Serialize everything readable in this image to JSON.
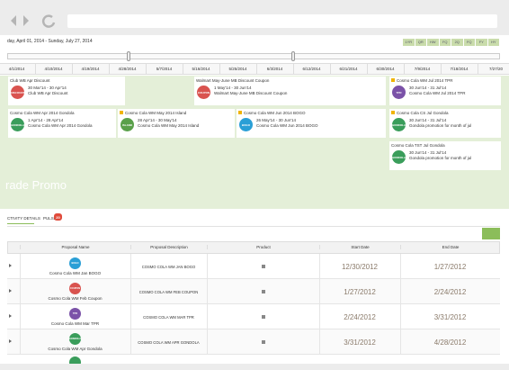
{
  "timeline": {
    "range": "day, April 01, 2014 - Sunday, July 27, 2014",
    "views": [
      "1YR",
      "QR",
      "HW",
      "FQ",
      "2Q",
      "FQ",
      "FY",
      "HY"
    ],
    "dates": [
      "4/1/2014",
      "4/10/2014",
      "4/19/2014",
      "4/28/2014",
      "5/7/2014",
      "5/16/2014",
      "5/25/2014",
      "6/3/2014",
      "6/12/2014",
      "6/21/2014",
      "6/30/2014",
      "7/9/2014",
      "7/18/2014",
      "7/27/20"
    ]
  },
  "events": [
    {
      "title": "Club WB Apr Discount",
      "dates": "30 Mar'14 - 30 Apr'14",
      "description": "Club WB Apr Discount",
      "badge": "DISCOUNT"
    },
    {
      "title": "Walmart May-June MB Discount Coupon",
      "dates": "1 May'14 - 30 Jun'14",
      "description": "Walmart May-June MB Discount Coupon",
      "badge": "COUPON"
    },
    {
      "title": "Cosmo Cola WM Jul 2014 TPR",
      "dates": "30 Jun'14 - 31 Jul'14",
      "description": "Cosmo Cola WM Jul 2014 TPR",
      "badge": "TPR"
    },
    {
      "title": "Cosmo Cola WM Apr 2014 Gondola",
      "dates": "1 Apr'14 - 28 Apr'14",
      "description": "Cosmo Cola WM Apr 2014 Gondola",
      "badge": "GONDOLA"
    },
    {
      "title": "Cosmo Cola WM May 2014 Island",
      "dates": "28 Apr'14 - 30 May'14",
      "description": "Cosmo Cola WM May 2014 Island",
      "badge": "ISLAND"
    },
    {
      "title": "Cosmo Cola WM Jun 2014 BOGO",
      "dates": "26 May'14 - 30 Jun'14",
      "description": "Cosmo Cola WM Jun 2014 BOGO",
      "badge": "BOGO"
    },
    {
      "title": "Cosmo Cola CS Jul Gondola",
      "dates": "30 Jun'14 - 31 Jul'14",
      "description": "Gondola promotion for month of jul",
      "badge": "GONDOLA"
    },
    {
      "title": "Cosmo Cola TST Jul Gondola",
      "dates": "30 Jun'14 - 31 Jul'14",
      "description": "Gondola promotion for month of jul",
      "badge": "GONDOLA"
    }
  ],
  "section_title": "rade Promo",
  "tabs": {
    "details": "CTIVITY DETAILS",
    "pulse": "PULSE",
    "pulse_count": "20"
  },
  "table": {
    "headers": [
      "Proposal Name",
      "Proposal Description",
      "Product",
      "Start Date",
      "End Date"
    ],
    "rows": [
      {
        "name": "Cosmo Cola WM Jan BOGO",
        "badge": "BOGO",
        "description": "COSMO COLA WM JAN BOGO",
        "start": "12/30/2012",
        "end": "1/27/2012"
      },
      {
        "name": "Cosmo Cola WM Feb Coupon",
        "badge": "COUPON",
        "description": "COSMO COLA WM FEB COUPON",
        "start": "1/27/2012",
        "end": "2/24/2012"
      },
      {
        "name": "Cosmo Cola WM Mar TPR",
        "badge": "TPR",
        "description": "COSMO COLA WM MAR TPR",
        "start": "2/24/2012",
        "end": "3/31/2012"
      },
      {
        "name": "Cosmo Cola WM Apr Gondola",
        "badge": "GONDOLA",
        "description": "COSMO COLA WM APR GONDOLA",
        "start": "3/31/2012",
        "end": "4/28/2012"
      }
    ]
  }
}
